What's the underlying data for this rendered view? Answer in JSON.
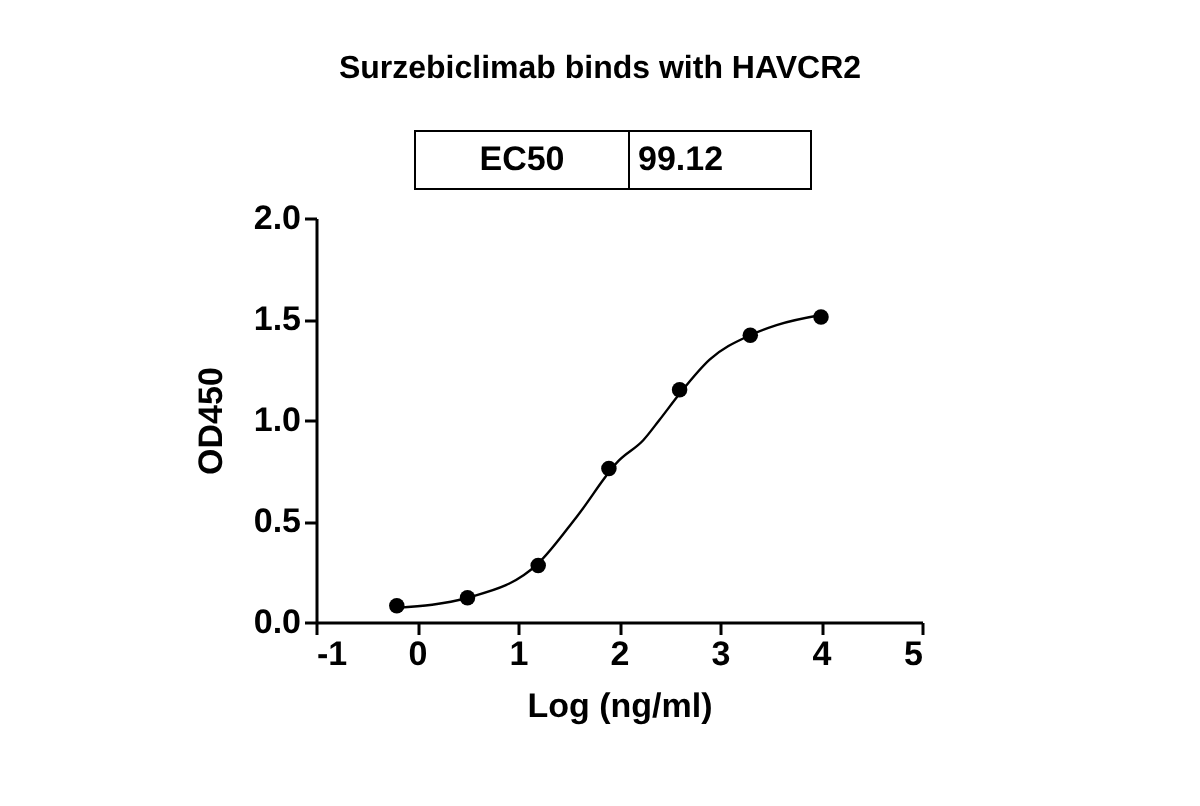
{
  "chart_data": {
    "type": "scatter",
    "title": "Surzebiclimab binds with HAVCR2",
    "annotations": [
      "EC50",
      "99.12"
    ],
    "xlabel": "Log (ng/ml)",
    "ylabel": "OD450",
    "series": [
      {
        "color": "#000000",
        "marker": "circle",
        "x": [
          -0.2,
          0.5,
          1.2,
          1.9,
          2.6,
          3.3,
          4.0
        ],
        "values": [
          0.08,
          0.12,
          0.28,
          0.76,
          1.15,
          1.42,
          1.51
        ]
      },
      {
        "type": "line",
        "color": "#000000",
        "line_style": "solid",
        "x": [
          -0.2,
          0.5,
          1.2,
          1.58,
          2.0,
          2.24,
          2.4,
          2.6,
          2.9,
          3.3,
          3.56,
          4.0
        ],
        "values": [
          0.07,
          0.12,
          0.29,
          0.52,
          0.8,
          0.9,
          1.0,
          1.13,
          1.3,
          1.42,
          1.47,
          1.52
        ]
      }
    ],
    "xlim": [
      -1,
      5
    ],
    "xticks": [
      -1,
      0,
      1,
      2,
      3,
      4,
      5
    ],
    "ylim": [
      0,
      2
    ],
    "yticks": [
      {
        "value": 0,
        "label": "0.0"
      },
      {
        "value": 0.5,
        "label": "0.5"
      },
      {
        "value": 1,
        "label": "1.0"
      },
      {
        "value": 1.5,
        "label": "1.5"
      },
      {
        "value": 2,
        "label": "2.0"
      }
    ],
    "grid": false
  }
}
